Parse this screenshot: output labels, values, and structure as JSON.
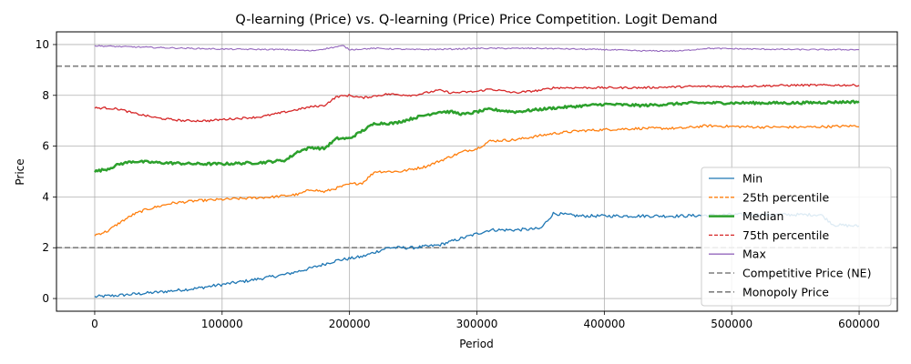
{
  "chart_data": {
    "type": "line",
    "title": "Q-learning (Price) vs. Q-learning (Price) Price Competition. Logit Demand",
    "xlabel": "Period",
    "ylabel": "Price",
    "xlim": [
      -30000,
      630000
    ],
    "ylim": [
      -0.5,
      10.5
    ],
    "xticks": [
      0,
      100000,
      200000,
      300000,
      400000,
      500000,
      600000
    ],
    "xtick_labels": [
      "0",
      "100000",
      "200000",
      "300000",
      "400000",
      "500000",
      "600000"
    ],
    "yticks": [
      0,
      2,
      4,
      6,
      8,
      10
    ],
    "ytick_labels": [
      "0",
      "2",
      "4",
      "6",
      "8",
      "10"
    ],
    "grid": true,
    "legend_position": "lower right",
    "series": [
      {
        "name": "Min",
        "color": "#1f77b4",
        "style": "solid",
        "x": [
          0,
          20000,
          50000,
          80000,
          100000,
          120000,
          150000,
          170000,
          190000,
          210000,
          230000,
          250000,
          270000,
          290000,
          310000,
          330000,
          350000,
          360000,
          380000,
          400000,
          430000,
          460000,
          500000,
          540000,
          570000,
          580000,
          600000
        ],
        "values": [
          0.07,
          0.13,
          0.25,
          0.4,
          0.55,
          0.7,
          0.95,
          1.2,
          1.5,
          1.65,
          2.0,
          2.0,
          2.1,
          2.4,
          2.7,
          2.7,
          2.75,
          3.35,
          3.25,
          3.25,
          3.25,
          3.25,
          3.3,
          3.3,
          3.3,
          2.9,
          2.85
        ]
      },
      {
        "name": "25th percentile",
        "color": "#ff7f0e",
        "style": "dashed",
        "x": [
          0,
          10000,
          20000,
          30000,
          40000,
          60000,
          80000,
          100000,
          120000,
          140000,
          160000,
          170000,
          180000,
          200000,
          210000,
          220000,
          240000,
          260000,
          275000,
          290000,
          300000,
          310000,
          330000,
          360000,
          380000,
          400000,
          430000,
          460000,
          480000,
          520000,
          560000,
          600000
        ],
        "values": [
          2.5,
          2.65,
          3.0,
          3.3,
          3.5,
          3.75,
          3.85,
          3.9,
          3.95,
          4.0,
          4.1,
          4.3,
          4.2,
          4.5,
          4.55,
          5.0,
          5.0,
          5.2,
          5.5,
          5.8,
          5.9,
          6.2,
          6.25,
          6.5,
          6.6,
          6.65,
          6.7,
          6.7,
          6.8,
          6.75,
          6.75,
          6.8
        ]
      },
      {
        "name": "Median",
        "color": "#2ca02c",
        "style": "solid",
        "x": [
          0,
          10000,
          20000,
          30000,
          50000,
          80000,
          100000,
          130000,
          150000,
          160000,
          170000,
          180000,
          190000,
          200000,
          210000,
          220000,
          235000,
          250000,
          270000,
          280000,
          290000,
          300000,
          310000,
          330000,
          360000,
          400000,
          430000,
          470000,
          500000,
          550000,
          600000
        ],
        "values": [
          5.0,
          5.1,
          5.3,
          5.4,
          5.35,
          5.3,
          5.3,
          5.35,
          5.45,
          5.8,
          5.95,
          5.9,
          6.3,
          6.3,
          6.6,
          6.9,
          6.9,
          7.1,
          7.35,
          7.35,
          7.25,
          7.35,
          7.45,
          7.35,
          7.5,
          7.65,
          7.6,
          7.7,
          7.7,
          7.7,
          7.75
        ]
      },
      {
        "name": "75th percentile",
        "color": "#d62728",
        "style": "dashed",
        "x": [
          0,
          10000,
          20000,
          30000,
          50000,
          70000,
          90000,
          100000,
          130000,
          150000,
          160000,
          170000,
          180000,
          190000,
          200000,
          210000,
          230000,
          250000,
          270000,
          280000,
          300000,
          310000,
          330000,
          350000,
          360000,
          400000,
          430000,
          470000,
          500000,
          550000,
          600000
        ],
        "values": [
          7.5,
          7.5,
          7.45,
          7.3,
          7.1,
          7.0,
          7.0,
          7.05,
          7.15,
          7.35,
          7.45,
          7.55,
          7.6,
          7.95,
          8.0,
          7.9,
          8.05,
          8.0,
          8.2,
          8.1,
          8.15,
          8.25,
          8.1,
          8.2,
          8.3,
          8.3,
          8.3,
          8.35,
          8.35,
          8.4,
          8.4
        ]
      },
      {
        "name": "Max",
        "color": "#9467bd",
        "style": "solid",
        "x": [
          0,
          20000,
          50000,
          100000,
          150000,
          170000,
          195000,
          200000,
          220000,
          250000,
          280000,
          300000,
          350000,
          400000,
          430000,
          460000,
          480000,
          520000,
          560000,
          580000,
          600000
        ],
        "values": [
          9.95,
          9.92,
          9.88,
          9.82,
          9.8,
          9.75,
          9.95,
          9.8,
          9.85,
          9.8,
          9.82,
          9.85,
          9.85,
          9.8,
          9.75,
          9.75,
          9.85,
          9.82,
          9.8,
          9.8,
          9.8
        ]
      }
    ],
    "reference_lines": [
      {
        "name": "Competitive Price (NE)",
        "y": 2.0,
        "color": "#7f7f7f",
        "style": "dashed"
      },
      {
        "name": "Monopoly Price",
        "y": 9.15,
        "color": "#7f7f7f",
        "style": "dashed"
      }
    ]
  }
}
